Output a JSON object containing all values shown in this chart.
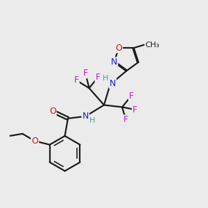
{
  "bg_color": "#ebebeb",
  "bond_color": "#1a1a1a",
  "bond_width": 1.6,
  "colors": {
    "N": "#1a1acc",
    "O": "#cc1111",
    "F": "#cc11cc",
    "H": "#4a9999",
    "C": "#1a1a1a"
  },
  "layout": {
    "xlim": [
      0,
      10
    ],
    "ylim": [
      0,
      10
    ]
  }
}
